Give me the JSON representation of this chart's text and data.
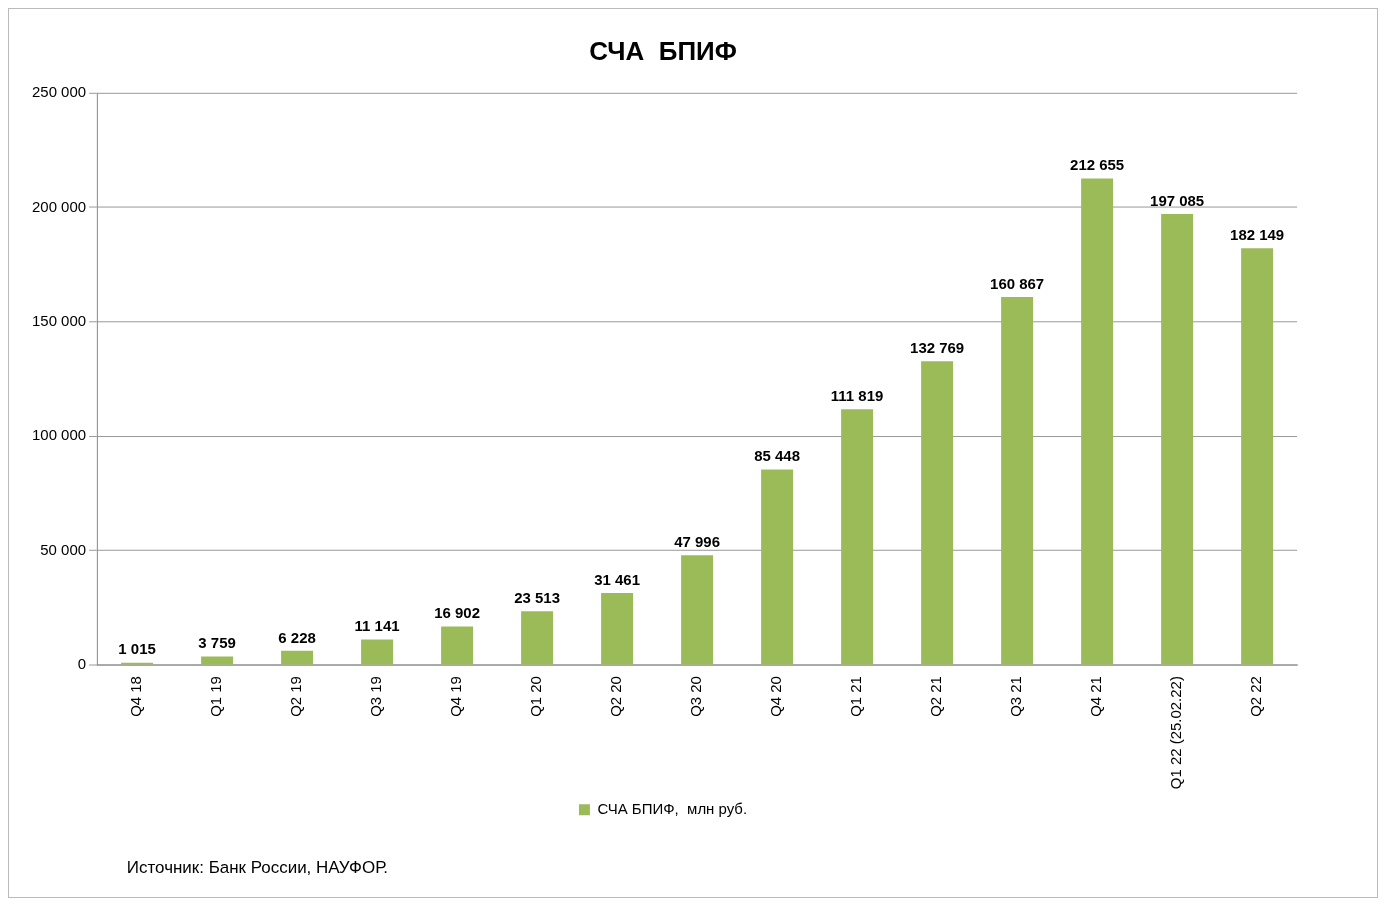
{
  "chart_data": {
    "type": "bar",
    "title": "СЧА  БПИФ",
    "categories": [
      "Q4 18",
      "Q1 19",
      "Q2 19",
      "Q3 19",
      "Q4 19",
      "Q1 20",
      "Q2 20",
      "Q3 20",
      "Q4 20",
      "Q1 21",
      "Q2 21",
      "Q3 21",
      "Q4 21",
      "Q1 22 (25.02.22)",
      "Q2 22"
    ],
    "series": [
      {
        "name": "СЧА БПИФ,  млн руб.",
        "color": "#9bbb59",
        "values": [
          1015,
          3759,
          6228,
          11141,
          16902,
          23513,
          31461,
          47996,
          85448,
          111819,
          132769,
          160867,
          212655,
          197085,
          182149
        ],
        "value_labels": [
          "1 015",
          "3 759",
          "6 228",
          "11 141",
          "16 902",
          "23 513",
          "31 461",
          "47 996",
          "85 448",
          "111 819",
          "132 769",
          "160 867",
          "212 655",
          "197 085",
          "182 149"
        ]
      }
    ],
    "ylim": [
      0,
      250000
    ],
    "yticks": [
      0,
      {
        "value": 50000,
        "label": "50 000"
      },
      {
        "value": 100000,
        "label": "100 000"
      },
      {
        "value": 150000,
        "label": "150 000"
      },
      {
        "value": 200000,
        "label": "200 000"
      },
      {
        "value": 250000,
        "label": "250 000"
      }
    ],
    "grid": "y",
    "legend": "bottom",
    "annotations": [
      "Источник: Банк России, НАУФОР."
    ]
  }
}
